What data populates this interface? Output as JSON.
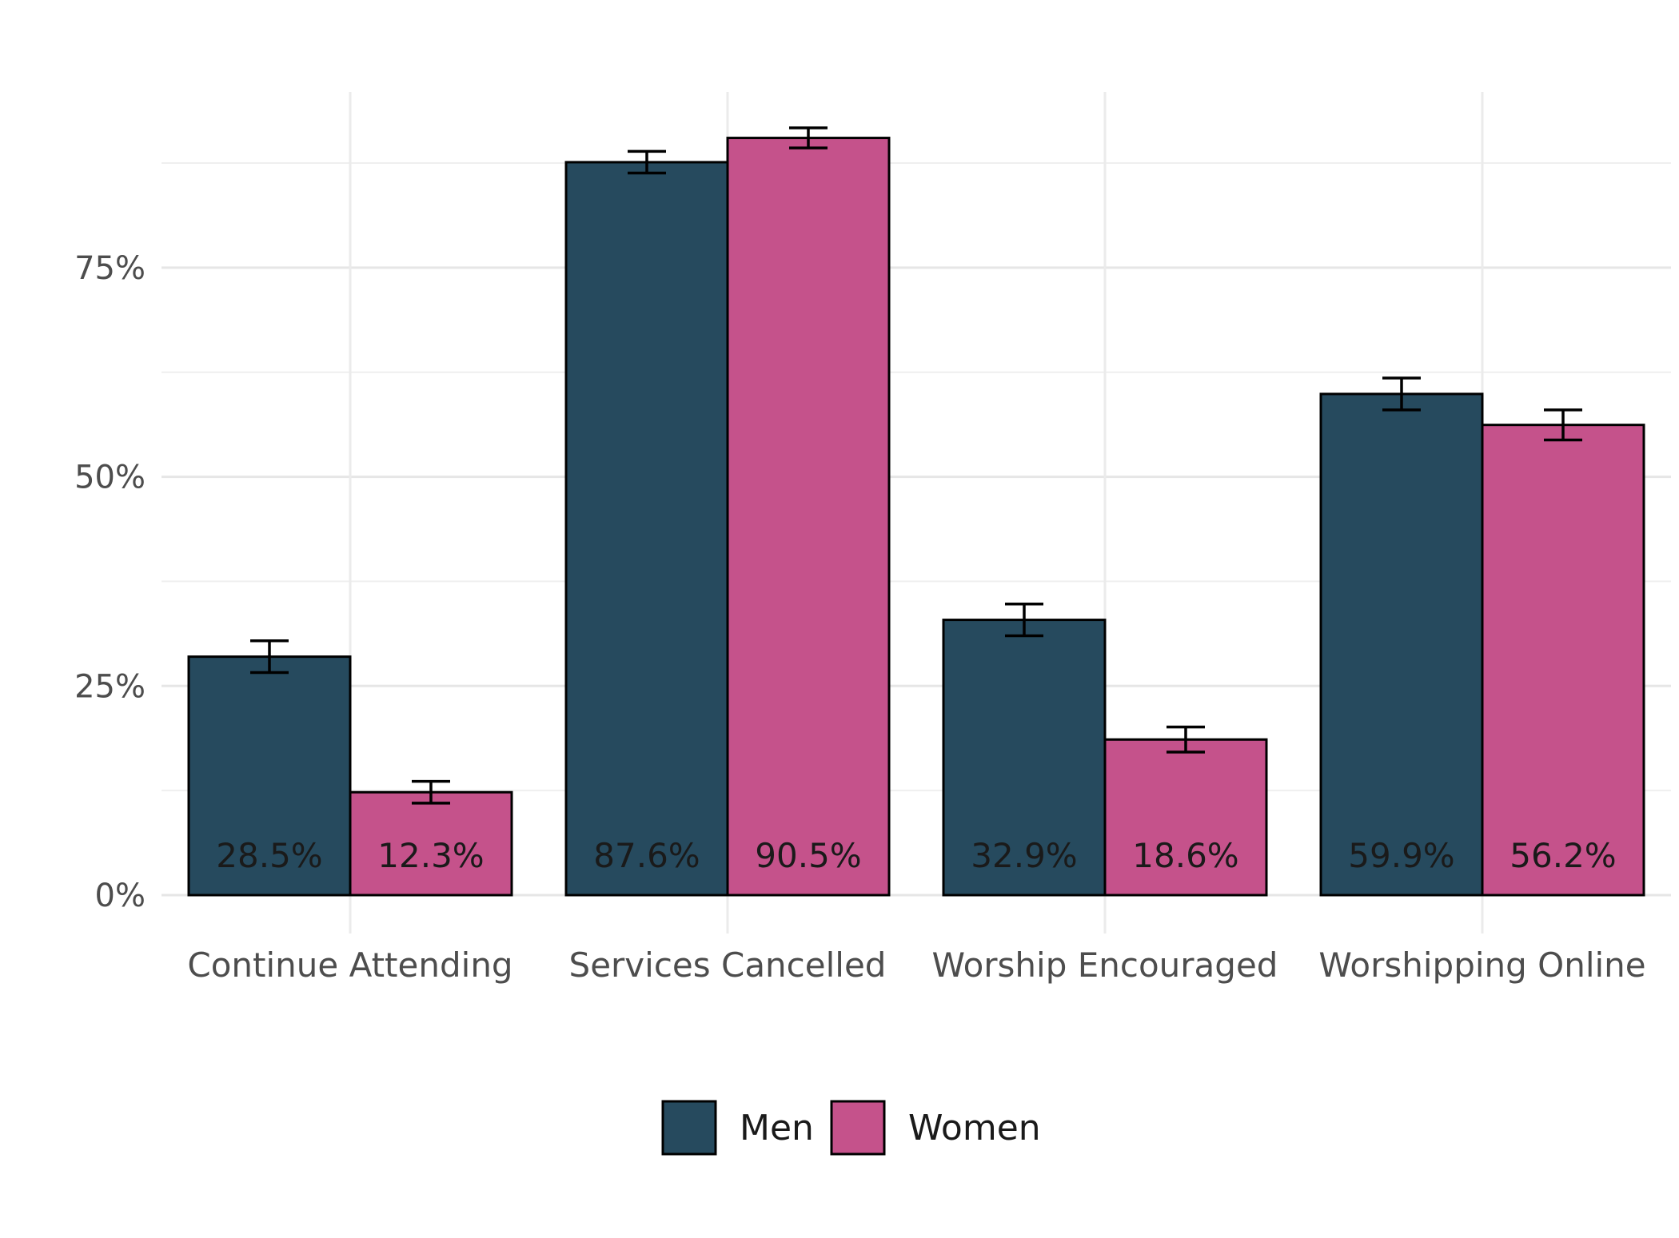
{
  "chart_data": {
    "type": "bar",
    "title": "",
    "xlabel": "",
    "ylabel": "",
    "categories": [
      "Continue Attending",
      "Services Cancelled",
      "Worship Encouraged",
      "Worshipping Online"
    ],
    "series": [
      {
        "name": "Men",
        "color": "#264a5e",
        "values": [
          28.5,
          87.6,
          32.9,
          59.9
        ],
        "labels": [
          "28.5%",
          "87.6%",
          "32.9%",
          "59.9%"
        ],
        "error_low": [
          26.6,
          86.3,
          31.0,
          58.0
        ],
        "error_high": [
          30.4,
          88.9,
          34.8,
          61.8
        ]
      },
      {
        "name": "Women",
        "color": "#c5528b",
        "values": [
          12.3,
          90.5,
          18.6,
          56.2
        ],
        "labels": [
          "12.3%",
          "90.5%",
          "18.6%",
          "56.2%"
        ],
        "error_low": [
          11.0,
          89.3,
          17.1,
          54.4
        ],
        "error_high": [
          13.6,
          91.7,
          20.1,
          58.0
        ]
      }
    ],
    "ylim": [
      0,
      96
    ],
    "y_ticks": [
      0,
      25,
      50,
      75
    ],
    "y_tick_labels": [
      "0%",
      "25%",
      "50%",
      "75%"
    ],
    "grid": true,
    "legend_position": "bottom"
  }
}
